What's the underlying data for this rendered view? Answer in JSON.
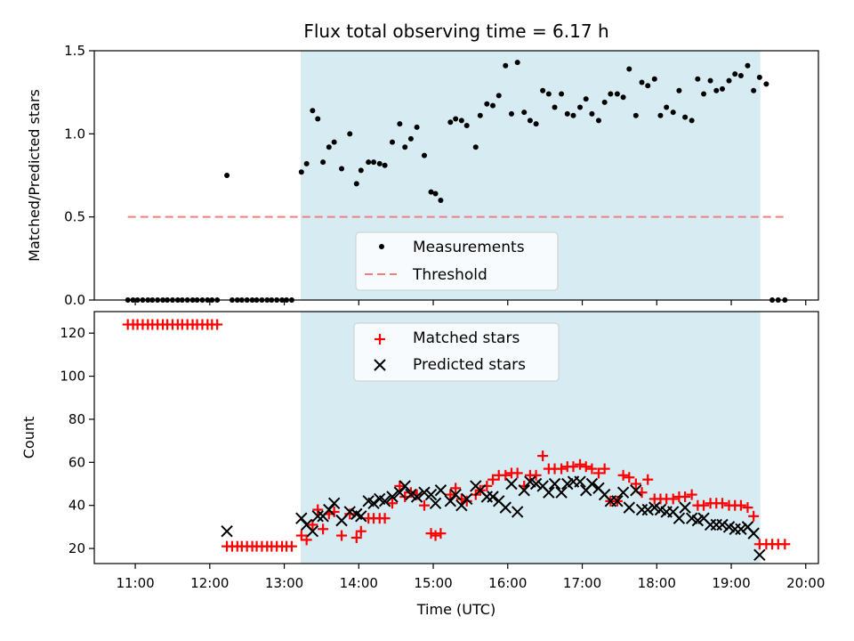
{
  "chart_data": {
    "title": "Flux total observing time = 6.17 h",
    "shared_x": {
      "xlabel": "Time (UTC)",
      "xlim": [
        10.45,
        20.17
      ],
      "ticks": [
        11,
        12,
        13,
        14,
        15,
        16,
        17,
        18,
        19,
        20
      ],
      "tick_labels": [
        "11:00",
        "12:00",
        "13:00",
        "14:00",
        "15:00",
        "16:00",
        "17:00",
        "18:00",
        "19:00",
        "20:00"
      ],
      "shaded_span": [
        13.22,
        19.39
      ]
    },
    "colors": {
      "measurements": "#000000",
      "threshold": "#f08080",
      "matched": "#ff0000",
      "predicted": "#000000",
      "shade": "#add8e6"
    },
    "top": {
      "type": "scatter",
      "ylabel": "Matched/Predicted stars",
      "ylim": [
        0,
        1.5
      ],
      "yticks": [
        0.0,
        0.5,
        1.0,
        1.5
      ],
      "ytick_labels": [
        "0.0",
        "0.5",
        "1.0",
        "1.5"
      ],
      "legend": {
        "placement": "lower-center",
        "entries": [
          "Measurements",
          "Threshold"
        ]
      },
      "threshold": {
        "name": "Threshold",
        "y": 0.5,
        "x_range": [
          10.9,
          19.72
        ]
      },
      "measurements": {
        "name": "Measurements",
        "x": [
          10.9,
          10.97,
          11.03,
          11.1,
          11.17,
          11.23,
          11.3,
          11.37,
          11.43,
          11.5,
          11.57,
          11.63,
          11.7,
          11.77,
          11.83,
          11.9,
          11.97,
          12.03,
          12.1,
          12.23,
          12.3,
          12.37,
          12.43,
          12.5,
          12.57,
          12.63,
          12.7,
          12.77,
          12.83,
          12.9,
          12.97,
          13.03,
          13.1,
          13.23,
          13.3,
          13.38,
          13.45,
          13.52,
          13.6,
          13.67,
          13.77,
          13.88,
          13.97,
          14.03,
          14.13,
          14.2,
          14.28,
          14.35,
          14.45,
          14.55,
          14.62,
          14.7,
          14.78,
          14.88,
          14.97,
          15.03,
          15.1,
          15.23,
          15.3,
          15.38,
          15.45,
          15.57,
          15.63,
          15.72,
          15.8,
          15.88,
          15.97,
          16.05,
          16.13,
          16.22,
          16.3,
          16.38,
          16.47,
          16.55,
          16.63,
          16.72,
          16.8,
          16.88,
          16.97,
          17.05,
          17.13,
          17.22,
          17.3,
          17.38,
          17.47,
          17.55,
          17.63,
          17.72,
          17.8,
          17.88,
          17.97,
          18.05,
          18.13,
          18.22,
          18.3,
          18.38,
          18.47,
          18.55,
          18.63,
          18.72,
          18.8,
          18.88,
          18.97,
          19.05,
          19.13,
          19.22,
          19.3,
          19.38,
          19.47,
          19.55,
          19.63,
          19.72
        ],
        "y": [
          0,
          0,
          0,
          0,
          0,
          0,
          0,
          0,
          0,
          0,
          0,
          0,
          0,
          0,
          0,
          0,
          0,
          0,
          0,
          0.75,
          0,
          0,
          0,
          0,
          0,
          0,
          0,
          0,
          0,
          0,
          0,
          0,
          0,
          0.77,
          0.82,
          1.14,
          1.09,
          0.83,
          0.92,
          0.95,
          0.79,
          1.0,
          0.7,
          0.78,
          0.83,
          0.83,
          0.82,
          0.81,
          0.95,
          1.06,
          0.92,
          0.97,
          1.04,
          0.87,
          0.65,
          0.64,
          0.6,
          1.07,
          1.09,
          1.08,
          1.05,
          0.92,
          1.11,
          1.18,
          1.17,
          1.23,
          1.41,
          1.12,
          1.43,
          1.13,
          1.08,
          1.06,
          1.26,
          1.24,
          1.16,
          1.24,
          1.12,
          1.11,
          1.16,
          1.21,
          1.12,
          1.08,
          1.19,
          1.24,
          1.24,
          1.22,
          1.39,
          1.11,
          1.31,
          1.29,
          1.33,
          1.11,
          1.16,
          1.13,
          1.26,
          1.1,
          1.08,
          1.33,
          1.24,
          1.32,
          1.26,
          1.27,
          1.32,
          1.36,
          1.35,
          1.41,
          1.26,
          1.34,
          1.3,
          0,
          0,
          0
        ]
      }
    },
    "bottom": {
      "type": "scatter",
      "ylabel": "Count",
      "ylim": [
        13,
        130
      ],
      "yticks": [
        20,
        40,
        60,
        80,
        100,
        120
      ],
      "ytick_labels": [
        "20",
        "40",
        "60",
        "80",
        "100",
        "120"
      ],
      "legend": {
        "placement": "upper-center",
        "entries": [
          "Matched stars",
          "Predicted stars"
        ]
      },
      "matched": {
        "name": "Matched stars",
        "x": [
          10.9,
          10.97,
          11.03,
          11.1,
          11.17,
          11.23,
          11.3,
          11.37,
          11.43,
          11.5,
          11.57,
          11.63,
          11.7,
          11.77,
          11.83,
          11.9,
          11.97,
          12.03,
          12.1,
          12.23,
          12.3,
          12.37,
          12.43,
          12.5,
          12.57,
          12.63,
          12.7,
          12.77,
          12.83,
          12.9,
          12.97,
          13.03,
          13.1,
          13.23,
          13.3,
          13.38,
          13.45,
          13.52,
          13.6,
          13.67,
          13.77,
          13.88,
          13.97,
          14.03,
          14.13,
          14.2,
          14.28,
          14.35,
          14.45,
          14.55,
          14.62,
          14.7,
          14.78,
          14.88,
          14.97,
          15.03,
          15.1,
          15.23,
          15.3,
          15.38,
          15.45,
          15.57,
          15.63,
          15.72,
          15.8,
          15.88,
          15.97,
          16.05,
          16.13,
          16.22,
          16.3,
          16.38,
          16.47,
          16.55,
          16.63,
          16.72,
          16.8,
          16.88,
          16.97,
          17.05,
          17.13,
          17.22,
          17.3,
          17.38,
          17.47,
          17.55,
          17.63,
          17.72,
          17.8,
          17.88,
          17.97,
          18.05,
          18.13,
          18.22,
          18.3,
          18.38,
          18.47,
          18.55,
          18.63,
          18.72,
          18.8,
          18.88,
          18.97,
          19.05,
          19.13,
          19.22,
          19.3,
          19.38,
          19.47,
          19.55,
          19.63,
          19.72
        ],
        "y": [
          124,
          124,
          124,
          124,
          124,
          124,
          124,
          124,
          124,
          124,
          124,
          124,
          124,
          124,
          124,
          124,
          124,
          124,
          124,
          21,
          21,
          21,
          21,
          21,
          21,
          21,
          21,
          21,
          21,
          21,
          21,
          21,
          21,
          26,
          24,
          31,
          38,
          29,
          36,
          37,
          26,
          36,
          25,
          28,
          34,
          34,
          34,
          34,
          41,
          49,
          44,
          46,
          45,
          40,
          27,
          26,
          27,
          45,
          48,
          43,
          42,
          45,
          47,
          49,
          52,
          54,
          54,
          55,
          55,
          49,
          54,
          54,
          63,
          57,
          57,
          57,
          58,
          58,
          59,
          58,
          57,
          55,
          57,
          42,
          42,
          54,
          53,
          50,
          46,
          52,
          43,
          43,
          43,
          43,
          44,
          44,
          45,
          40,
          40,
          41,
          41,
          41,
          40,
          40,
          40,
          39,
          35,
          22,
          22,
          22,
          22,
          22
        ]
      },
      "predicted": {
        "name": "Predicted stars",
        "x": [
          12.23,
          13.23,
          13.3,
          13.38,
          13.45,
          13.52,
          13.6,
          13.67,
          13.77,
          13.88,
          13.97,
          14.03,
          14.13,
          14.2,
          14.28,
          14.35,
          14.45,
          14.55,
          14.62,
          14.7,
          14.78,
          14.88,
          14.97,
          15.03,
          15.1,
          15.23,
          15.3,
          15.38,
          15.45,
          15.57,
          15.63,
          15.72,
          15.8,
          15.88,
          15.97,
          16.05,
          16.13,
          16.22,
          16.3,
          16.38,
          16.47,
          16.55,
          16.63,
          16.72,
          16.8,
          16.88,
          16.97,
          17.05,
          17.13,
          17.22,
          17.3,
          17.38,
          17.47,
          17.55,
          17.63,
          17.72,
          17.8,
          17.88,
          17.97,
          18.05,
          18.13,
          18.22,
          18.3,
          18.38,
          18.47,
          18.55,
          18.63,
          18.72,
          18.8,
          18.88,
          18.97,
          19.05,
          19.13,
          19.22,
          19.3,
          19.38
        ],
        "y": [
          28,
          34,
          31,
          28,
          35,
          35,
          38,
          41,
          33,
          37,
          36,
          35,
          42,
          41,
          43,
          42,
          44,
          46,
          49,
          45,
          44,
          46,
          45,
          41,
          47,
          42,
          45,
          40,
          43,
          49,
          47,
          44,
          44,
          42,
          39,
          50,
          37,
          47,
          51,
          50,
          49,
          46,
          50,
          46,
          50,
          51,
          51,
          47,
          50,
          48,
          45,
          42,
          42,
          46,
          39,
          47,
          38,
          38,
          39,
          38,
          37,
          37,
          34,
          39,
          34,
          33,
          34,
          31,
          31,
          31,
          30,
          29,
          29,
          30,
          27,
          17
        ]
      }
    }
  }
}
